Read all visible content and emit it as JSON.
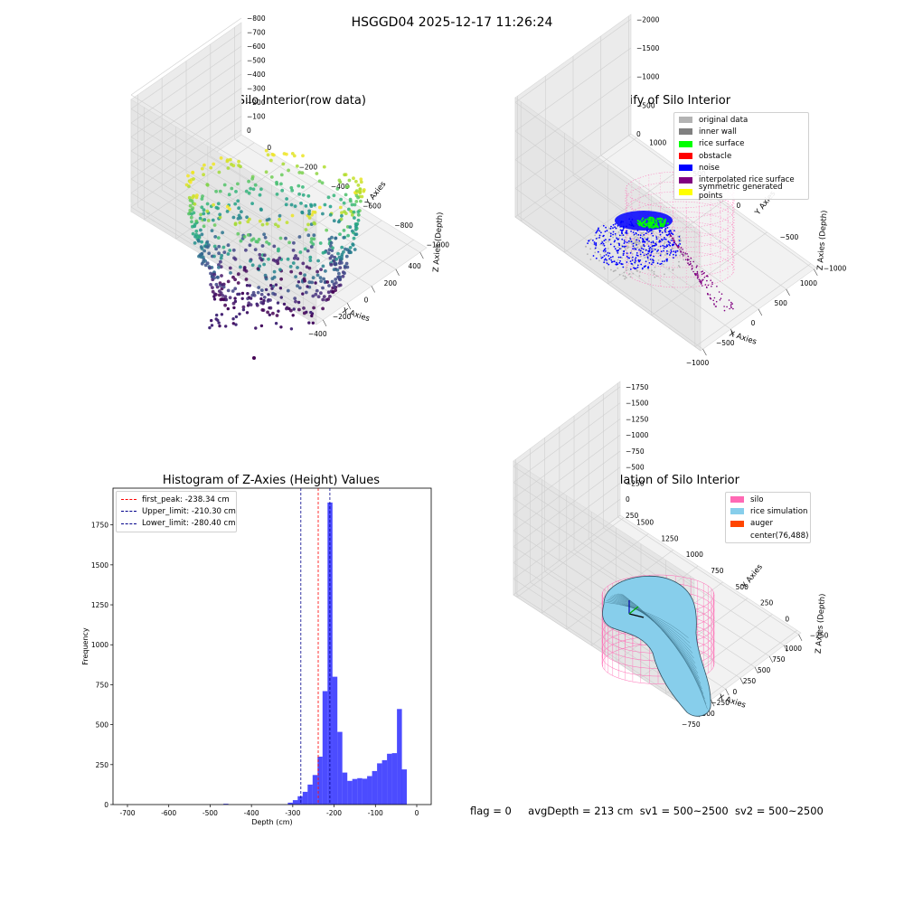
{
  "suptitle": "HSGGD04 2025-12-17 11:26:24",
  "status_line": {
    "flag": "flag = 0",
    "avg_depth": "avgDepth = 213 cm",
    "sv1": "sv1 = 500~2500",
    "sv2": "sv2 = 500~2500"
  },
  "chart_data": [
    {
      "type": "scatter",
      "projection": "3d",
      "title": "3D Plot of Silo Interior(row data)",
      "xlabel": "X Axies",
      "ylabel": "Y Axies",
      "zlabel": "Z Axies (Depth)",
      "x_ticks": [
        "−400",
        "−200",
        "0",
        "200",
        "400"
      ],
      "y_ticks": [
        "0",
        "−200",
        "−400",
        "−600",
        "−800",
        "−1000"
      ],
      "z_ticks": [
        "0",
        "−100",
        "−200",
        "−300",
        "−400",
        "−500",
        "−600",
        "−700",
        "−800"
      ],
      "xlim": [
        -480,
        480
      ],
      "ylim": [
        -1080,
        80
      ],
      "zlim": [
        -860,
        30
      ],
      "colormap": "viridis",
      "grid": true
    },
    {
      "type": "scatter",
      "projection": "3d",
      "title": "3D classify of Silo Interior",
      "xlabel": "X Axies",
      "ylabel": "Y Axies",
      "zlabel": "Z Axies (Depth)",
      "x_ticks": [
        "−1000",
        "−500",
        "0",
        "500",
        "1000"
      ],
      "y_ticks": [
        "1000",
        "500",
        "0",
        "−500",
        "−1000"
      ],
      "z_ticks": [
        "0",
        "−500",
        "−1000",
        "−1500",
        "−2000"
      ],
      "xlim": [
        -1100,
        1100
      ],
      "ylim": [
        -1100,
        1100
      ],
      "zlim": [
        -2000,
        100
      ],
      "legend_position": "top-right",
      "legend": [
        {
          "label": "original data",
          "color": "#b3b3b3"
        },
        {
          "label": "inner wall",
          "color": "#808080"
        },
        {
          "label": "rice surface",
          "color": "#00ff00"
        },
        {
          "label": "obstacle",
          "color": "#ff0000"
        },
        {
          "label": "noise",
          "color": "#0000ff"
        },
        {
          "label": "interpolated rice surface",
          "color": "#800080"
        },
        {
          "label": "symmetric generated points",
          "color": "#ffff00"
        }
      ],
      "grid": true
    },
    {
      "type": "bar",
      "subtype": "histogram",
      "title": "Histogram of Z-Axies (Height) Values",
      "xlabel": "Depth (cm)",
      "ylabel": "Frequency",
      "xlim": [
        -735,
        35
      ],
      "ylim": [
        0,
        1980
      ],
      "x_ticks": [
        -700,
        -600,
        -500,
        -400,
        -300,
        -200,
        -100,
        0
      ],
      "y_ticks": [
        0,
        250,
        500,
        750,
        1000,
        1250,
        1500,
        1750
      ],
      "bin_width": 12,
      "bar_color": "#0000ff",
      "bins": [
        {
          "x": -462,
          "count": 5
        },
        {
          "x": -306,
          "count": 12
        },
        {
          "x": -294,
          "count": 28
        },
        {
          "x": -282,
          "count": 52
        },
        {
          "x": -270,
          "count": 80
        },
        {
          "x": -258,
          "count": 125
        },
        {
          "x": -246,
          "count": 185
        },
        {
          "x": -234,
          "count": 300
        },
        {
          "x": -222,
          "count": 710
        },
        {
          "x": -210,
          "count": 1890
        },
        {
          "x": -198,
          "count": 800
        },
        {
          "x": -186,
          "count": 455
        },
        {
          "x": -174,
          "count": 200
        },
        {
          "x": -162,
          "count": 148
        },
        {
          "x": -150,
          "count": 160
        },
        {
          "x": -138,
          "count": 165
        },
        {
          "x": -126,
          "count": 162
        },
        {
          "x": -114,
          "count": 178
        },
        {
          "x": -102,
          "count": 210
        },
        {
          "x": -90,
          "count": 258
        },
        {
          "x": -78,
          "count": 278
        },
        {
          "x": -66,
          "count": 318
        },
        {
          "x": -54,
          "count": 322
        },
        {
          "x": -42,
          "count": 598
        },
        {
          "x": -30,
          "count": 220
        }
      ],
      "lines": [
        {
          "label": "first_peak: -238.34 cm",
          "x": -238.34,
          "color": "#ff0000"
        },
        {
          "label": "Upper_limit: -210.30 cm",
          "x": -210.3,
          "color": "#00008b"
        },
        {
          "label": "Lower_limit: -280.40 cm",
          "x": -280.4,
          "color": "#00008b"
        }
      ],
      "legend_position": "top-left"
    },
    {
      "type": "surface",
      "projection": "3d",
      "title": "3D simulation of Silo Interior",
      "xlabel": "X Axies",
      "ylabel": "Y Axies",
      "zlabel": "Z Axies (Depth)",
      "x_ticks": [
        "−750",
        "−500",
        "−250",
        "0",
        "250",
        "500",
        "750",
        "1000"
      ],
      "y_ticks": [
        "1500",
        "1250",
        "1000",
        "750",
        "500",
        "250",
        "0",
        "−250"
      ],
      "z_ticks": [
        "250",
        "0",
        "−250",
        "−500",
        "−750",
        "−1000",
        "−1250",
        "−1500",
        "−1750"
      ],
      "legend_position": "top-right",
      "legend": [
        {
          "label": "silo",
          "color": "#ff69b4"
        },
        {
          "label": "rice simulation",
          "color": "#87ceeb"
        },
        {
          "label": "auger",
          "color": "#ff4500"
        },
        {
          "label": "center(76,488)",
          "color": ""
        }
      ],
      "grid": true
    }
  ]
}
